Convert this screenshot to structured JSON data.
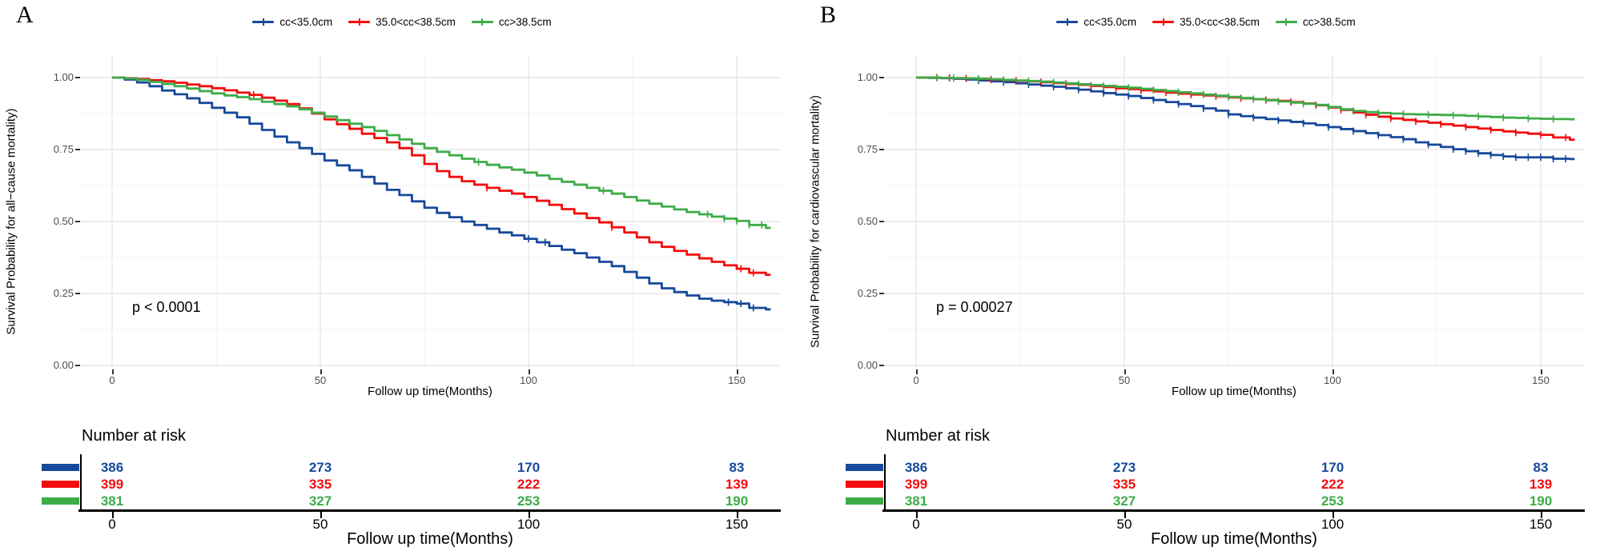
{
  "figure_colors": {
    "blue": "#17499C",
    "red": "#F20D0D",
    "green": "#3EAC49",
    "axis_text": "#4D4D4D",
    "grid_major": "#E4E4E4",
    "grid_minor": "#F1F1F1"
  },
  "panels": [
    {
      "letter": "A",
      "legend": [
        {
          "label": "cc<35.0cm",
          "color_key": "blue"
        },
        {
          "label": "35.0<cc<38.5cm",
          "color_key": "red"
        },
        {
          "label": "cc>38.5cm",
          "color_key": "green"
        }
      ],
      "ylabel": "Survival Probability for all−cause mortality)",
      "xlabel": "Follow up time(Months)",
      "pvalue": "p < 0.0001",
      "y_ticks": [
        "1.00",
        "0.75",
        "0.50",
        "0.25",
        "0.00"
      ],
      "x_ticks": [
        "0",
        "50",
        "100",
        "150"
      ],
      "risk_table": {
        "title": "Number at risk",
        "xlabel": "Follow up time(Months)",
        "x_ticks": [
          "0",
          "50",
          "100",
          "150"
        ],
        "rows": [
          {
            "color_key": "blue",
            "counts": [
              "386",
              "273",
              "170",
              "83"
            ]
          },
          {
            "color_key": "red",
            "counts": [
              "399",
              "335",
              "222",
              "139"
            ]
          },
          {
            "color_key": "green",
            "counts": [
              "381",
              "327",
              "253",
              "190"
            ]
          }
        ]
      }
    },
    {
      "letter": "B",
      "legend": [
        {
          "label": "cc<35.0cm",
          "color_key": "blue"
        },
        {
          "label": "35.0<cc<38.5cm",
          "color_key": "red"
        },
        {
          "label": "cc>38.5cm",
          "color_key": "green"
        }
      ],
      "ylabel": "Survival Probability for cardiovascular mortality)",
      "xlabel": "Follow up time(Months)",
      "pvalue": "p = 0.00027",
      "y_ticks": [
        "1.00",
        "0.75",
        "0.50",
        "0.25",
        "0.00"
      ],
      "x_ticks": [
        "0",
        "50",
        "100",
        "150"
      ],
      "risk_table": {
        "title": "Number at risk",
        "xlabel": "Follow up time(Months)",
        "x_ticks": [
          "0",
          "50",
          "100",
          "150"
        ],
        "rows": [
          {
            "color_key": "blue",
            "counts": [
              "386",
              "273",
              "170",
              "83"
            ]
          },
          {
            "color_key": "red",
            "counts": [
              "399",
              "335",
              "222",
              "139"
            ]
          },
          {
            "color_key": "green",
            "counts": [
              "381",
              "327",
              "253",
              "190"
            ]
          }
        ]
      }
    }
  ],
  "chart_data": [
    {
      "panel": "A",
      "type": "line",
      "subtype": "kaplan_meier_step_survival",
      "title": "Kaplan-Meier survival by calf circumference group, all-cause mortality",
      "xlabel": "Follow up time(Months)",
      "ylabel": "Survival Probability for all−cause mortality)",
      "pvalue": "p < 0.0001",
      "xlim": [
        0,
        160
      ],
      "ylim": [
        0,
        1
      ],
      "x_ticks": [
        0,
        50,
        100,
        150
      ],
      "y_ticks": [
        0.0,
        0.25,
        0.5,
        0.75,
        1.0
      ],
      "grid": true,
      "legend_position": "top",
      "times": [
        0,
        3,
        6,
        9,
        12,
        15,
        18,
        21,
        24,
        27,
        30,
        33,
        36,
        39,
        42,
        45,
        48,
        51,
        54,
        57,
        60,
        63,
        66,
        69,
        72,
        75,
        78,
        81,
        84,
        87,
        90,
        93,
        96,
        99,
        102,
        105,
        108,
        111,
        114,
        117,
        120,
        123,
        126,
        129,
        132,
        135,
        138,
        141,
        144,
        147,
        150,
        153,
        157
      ],
      "series": [
        {
          "name": "cc<35.0cm",
          "color": "#17499C",
          "survival": [
            1.0,
            0.993,
            0.983,
            0.97,
            0.955,
            0.942,
            0.928,
            0.912,
            0.895,
            0.878,
            0.862,
            0.84,
            0.818,
            0.795,
            0.775,
            0.755,
            0.735,
            0.712,
            0.695,
            0.678,
            0.655,
            0.632,
            0.61,
            0.592,
            0.57,
            0.548,
            0.53,
            0.515,
            0.5,
            0.488,
            0.475,
            0.462,
            0.452,
            0.44,
            0.428,
            0.415,
            0.402,
            0.39,
            0.375,
            0.36,
            0.345,
            0.325,
            0.305,
            0.285,
            0.268,
            0.255,
            0.243,
            0.232,
            0.225,
            0.22,
            0.215,
            0.2,
            0.195
          ],
          "censor_times": [
            100,
            104,
            148,
            151,
            154
          ]
        },
        {
          "name": "35.0<cc<38.5cm",
          "color": "#F20D0D",
          "survival": [
            1.0,
            0.998,
            0.995,
            0.991,
            0.987,
            0.982,
            0.976,
            0.97,
            0.963,
            0.956,
            0.948,
            0.94,
            0.93,
            0.92,
            0.908,
            0.893,
            0.875,
            0.855,
            0.838,
            0.822,
            0.805,
            0.79,
            0.775,
            0.755,
            0.73,
            0.7,
            0.675,
            0.655,
            0.64,
            0.628,
            0.617,
            0.607,
            0.597,
            0.585,
            0.572,
            0.558,
            0.543,
            0.528,
            0.512,
            0.497,
            0.48,
            0.462,
            0.445,
            0.428,
            0.412,
            0.398,
            0.385,
            0.372,
            0.36,
            0.348,
            0.336,
            0.322,
            0.315
          ],
          "censor_times": [
            34,
            90,
            120,
            151,
            154
          ]
        },
        {
          "name": "cc>38.5cm",
          "color": "#3EAC49",
          "survival": [
            1.0,
            0.997,
            0.992,
            0.985,
            0.978,
            0.97,
            0.962,
            0.953,
            0.945,
            0.938,
            0.932,
            0.925,
            0.916,
            0.908,
            0.9,
            0.89,
            0.878,
            0.865,
            0.852,
            0.84,
            0.828,
            0.815,
            0.8,
            0.785,
            0.77,
            0.755,
            0.742,
            0.73,
            0.718,
            0.707,
            0.697,
            0.688,
            0.68,
            0.67,
            0.66,
            0.648,
            0.638,
            0.628,
            0.617,
            0.607,
            0.597,
            0.585,
            0.573,
            0.562,
            0.552,
            0.542,
            0.533,
            0.525,
            0.517,
            0.51,
            0.502,
            0.488,
            0.478
          ],
          "censor_times": [
            88,
            118,
            143,
            147,
            150,
            153,
            156
          ]
        }
      ],
      "number_at_risk": {
        "times": [
          0,
          50,
          100,
          150
        ],
        "rows": [
          {
            "group": "cc<35.0cm",
            "counts": [
              386,
              273,
              170,
              83
            ]
          },
          {
            "group": "35.0<cc<38.5cm",
            "counts": [
              399,
              335,
              222,
              139
            ]
          },
          {
            "group": "cc>38.5cm",
            "counts": [
              381,
              327,
              253,
              190
            ]
          }
        ]
      }
    },
    {
      "panel": "B",
      "type": "line",
      "subtype": "kaplan_meier_step_survival",
      "title": "Kaplan-Meier survival by calf circumference group, cardiovascular mortality",
      "xlabel": "Follow up time(Months)",
      "ylabel": "Survival Probability for cardiovascular mortality)",
      "pvalue": "p = 0.00027",
      "xlim": [
        0,
        160
      ],
      "ylim": [
        0,
        1
      ],
      "x_ticks": [
        0,
        50,
        100,
        150
      ],
      "y_ticks": [
        0.0,
        0.25,
        0.5,
        0.75,
        1.0
      ],
      "grid": true,
      "legend_position": "top",
      "times": [
        0,
        3,
        6,
        9,
        12,
        15,
        18,
        21,
        24,
        27,
        30,
        33,
        36,
        39,
        42,
        45,
        48,
        51,
        54,
        57,
        60,
        63,
        66,
        69,
        72,
        75,
        78,
        81,
        84,
        87,
        90,
        93,
        96,
        99,
        102,
        105,
        108,
        111,
        114,
        117,
        120,
        123,
        126,
        129,
        132,
        135,
        138,
        141,
        144,
        147,
        150,
        153,
        157
      ],
      "series": [
        {
          "name": "cc<35.0cm",
          "color": "#17499C",
          "survival": [
            1.0,
            0.999,
            0.998,
            0.996,
            0.993,
            0.99,
            0.987,
            0.984,
            0.98,
            0.976,
            0.972,
            0.968,
            0.963,
            0.958,
            0.952,
            0.946,
            0.941,
            0.936,
            0.929,
            0.922,
            0.915,
            0.908,
            0.901,
            0.893,
            0.885,
            0.872,
            0.866,
            0.861,
            0.856,
            0.851,
            0.846,
            0.841,
            0.835,
            0.828,
            0.821,
            0.814,
            0.807,
            0.8,
            0.793,
            0.786,
            0.775,
            0.767,
            0.759,
            0.751,
            0.744,
            0.737,
            0.731,
            0.726,
            0.723,
            0.723,
            0.723,
            0.718,
            0.717
          ],
          "censor_times": [
            15,
            21,
            27,
            33,
            39,
            45,
            51,
            57,
            63,
            69,
            75,
            81,
            87,
            93,
            99,
            105,
            111,
            117,
            123,
            129,
            132,
            135,
            138,
            141,
            144,
            147,
            150,
            153,
            156
          ]
        },
        {
          "name": "35.0<cc<38.5cm",
          "color": "#F20D0D",
          "survival": [
            1.0,
            1.0,
            0.999,
            0.998,
            0.997,
            0.995,
            0.993,
            0.991,
            0.989,
            0.987,
            0.984,
            0.981,
            0.978,
            0.975,
            0.971,
            0.967,
            0.963,
            0.96,
            0.956,
            0.952,
            0.948,
            0.944,
            0.941,
            0.938,
            0.935,
            0.931,
            0.928,
            0.925,
            0.922,
            0.919,
            0.915,
            0.91,
            0.904,
            0.896,
            0.888,
            0.879,
            0.871,
            0.864,
            0.858,
            0.853,
            0.848,
            0.843,
            0.838,
            0.833,
            0.828,
            0.823,
            0.818,
            0.813,
            0.809,
            0.805,
            0.801,
            0.792,
            0.784
          ],
          "censor_times": [
            5,
            8,
            12,
            18,
            24,
            30,
            36,
            42,
            48,
            54,
            60,
            66,
            72,
            78,
            84,
            90,
            96,
            102,
            108,
            114,
            120,
            126,
            132,
            138,
            144,
            150,
            156
          ]
        },
        {
          "name": "cc>38.5cm",
          "color": "#3EAC49",
          "survival": [
            1.0,
            1.0,
            0.999,
            0.998,
            0.997,
            0.996,
            0.994,
            0.992,
            0.99,
            0.988,
            0.986,
            0.983,
            0.98,
            0.977,
            0.974,
            0.971,
            0.968,
            0.965,
            0.961,
            0.957,
            0.953,
            0.949,
            0.945,
            0.941,
            0.937,
            0.933,
            0.929,
            0.925,
            0.921,
            0.917,
            0.913,
            0.909,
            0.905,
            0.898,
            0.89,
            0.884,
            0.88,
            0.877,
            0.875,
            0.873,
            0.872,
            0.871,
            0.87,
            0.869,
            0.867,
            0.865,
            0.863,
            0.861,
            0.86,
            0.858,
            0.857,
            0.856,
            0.855
          ],
          "censor_times": [
            5,
            9,
            15,
            21,
            27,
            33,
            39,
            45,
            51,
            57,
            63,
            69,
            75,
            81,
            87,
            93,
            99,
            105,
            111,
            117,
            123,
            129,
            135,
            141,
            147,
            153
          ]
        }
      ],
      "number_at_risk": {
        "times": [
          0,
          50,
          100,
          150
        ],
        "rows": [
          {
            "group": "cc<35.0cm",
            "counts": [
              386,
              273,
              170,
              83
            ]
          },
          {
            "group": "35.0<cc<38.5cm",
            "counts": [
              399,
              335,
              222,
              139
            ]
          },
          {
            "group": "cc>38.5cm",
            "counts": [
              381,
              327,
              253,
              190
            ]
          }
        ]
      }
    }
  ]
}
